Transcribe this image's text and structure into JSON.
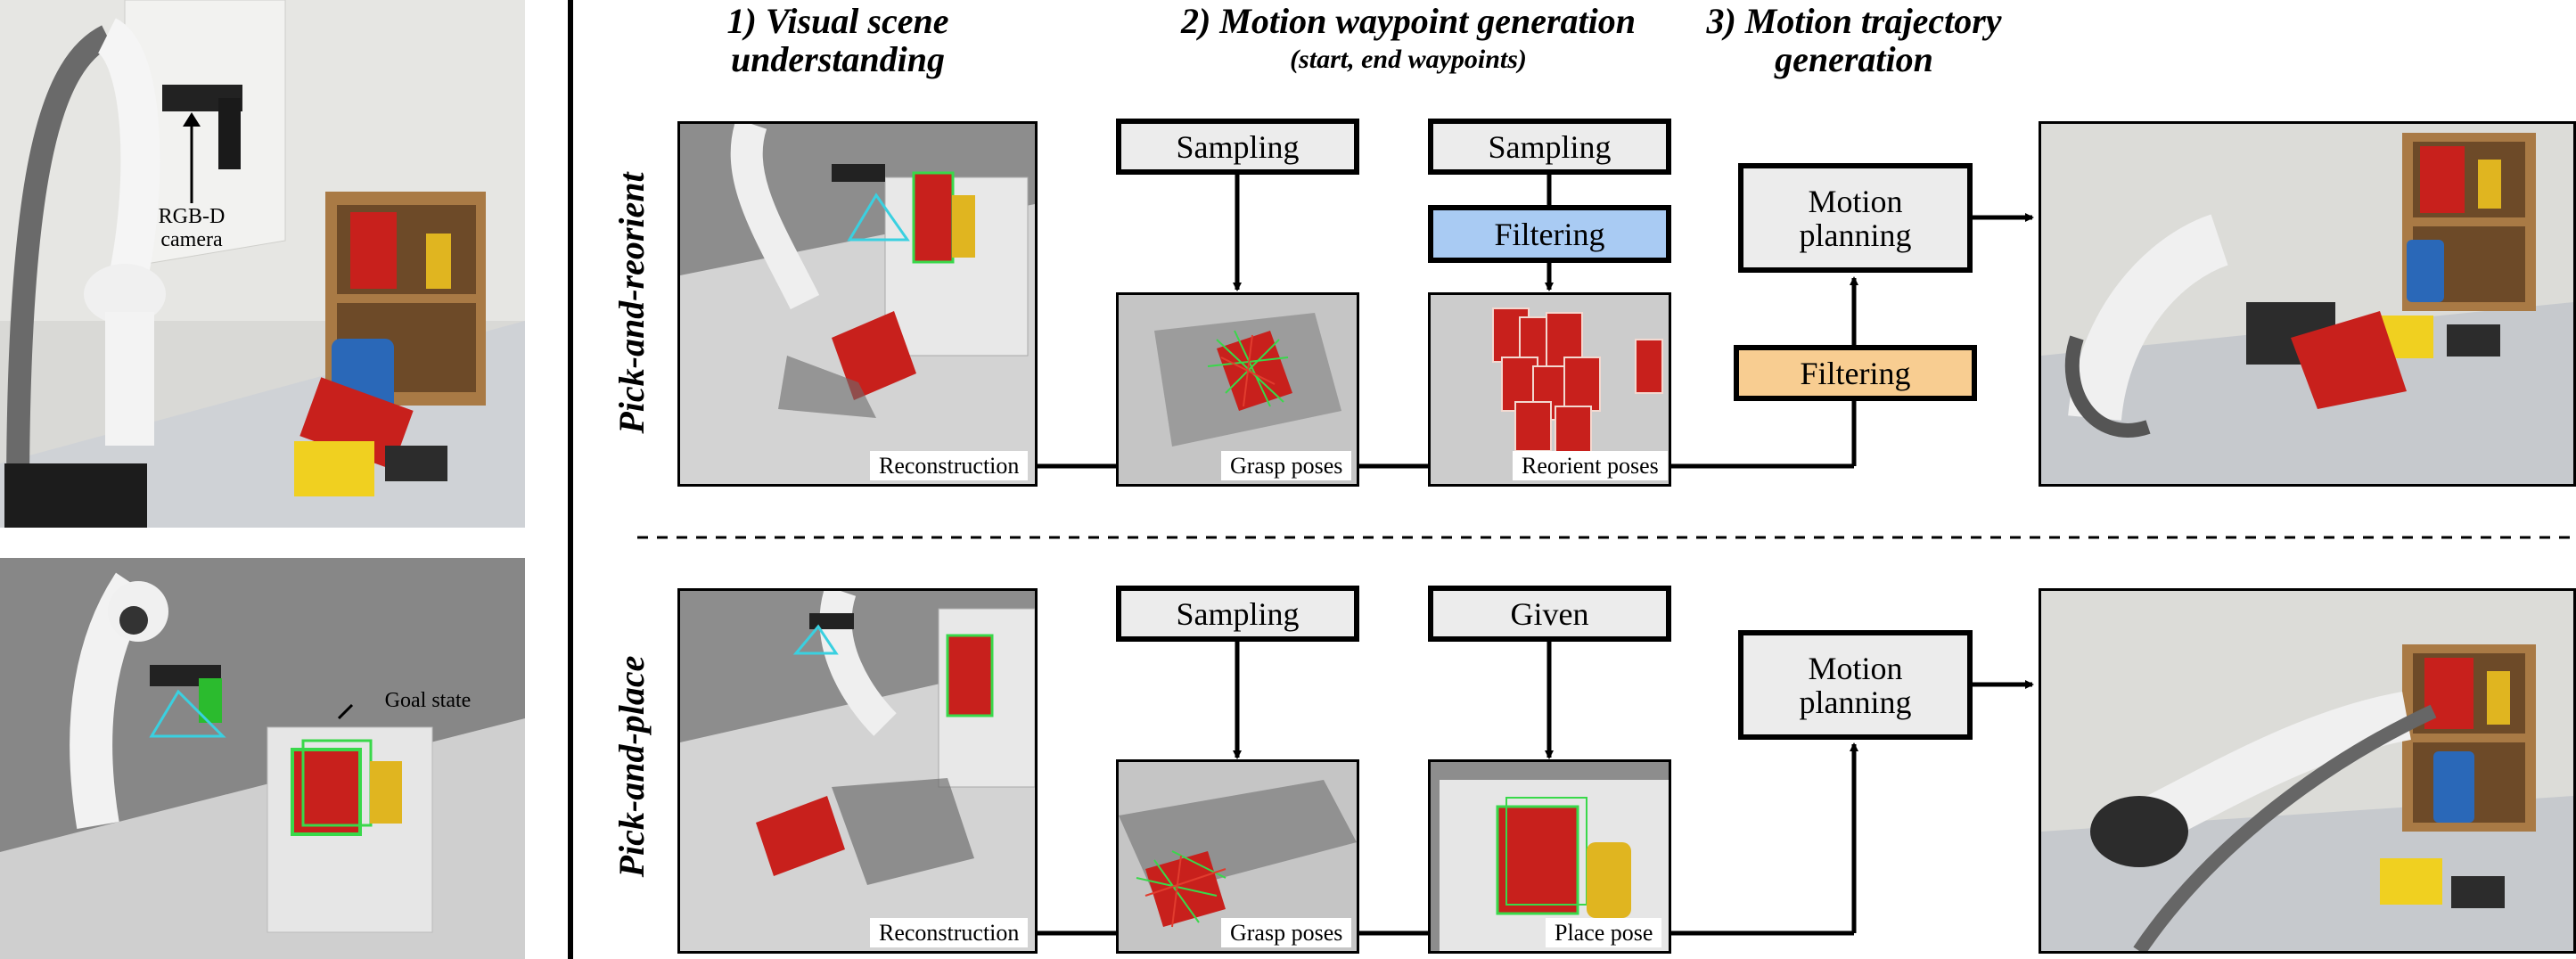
{
  "headers": {
    "stage1": "1) Visual scene\nunderstanding",
    "stage2": "2) Motion waypoint generation",
    "stage2_sub": "(start, end waypoints)",
    "stage3": "3) Motion trajectory\ngeneration"
  },
  "rows": {
    "top_label": "Pick-and-reorient",
    "bottom_label": "Pick-and-place"
  },
  "left_panel": {
    "camera_label": "RGB-D\ncamera",
    "goal_label": "Goal state"
  },
  "top_row": {
    "sampling1": "Sampling",
    "sampling2": "Sampling",
    "filtering_blue": "Filtering",
    "motion_planning": "Motion\nplanning",
    "filtering_orange": "Filtering",
    "caption_reconstruction": "Reconstruction",
    "caption_grasp": "Grasp poses",
    "caption_reorient": "Reorient poses"
  },
  "bottom_row": {
    "sampling": "Sampling",
    "given": "Given",
    "motion_planning": "Motion\nplanning",
    "caption_reconstruction": "Reconstruction",
    "caption_grasp": "Grasp poses",
    "caption_place": "Place pose"
  },
  "colors": {
    "filter_blue": "#a9cbf3",
    "filter_orange": "#f8cd91",
    "box_gray": "#ececec",
    "bbox_green": "#39d84a",
    "camera_cyan": "#3ad0e0",
    "cheezit_red": "#c8201c"
  }
}
